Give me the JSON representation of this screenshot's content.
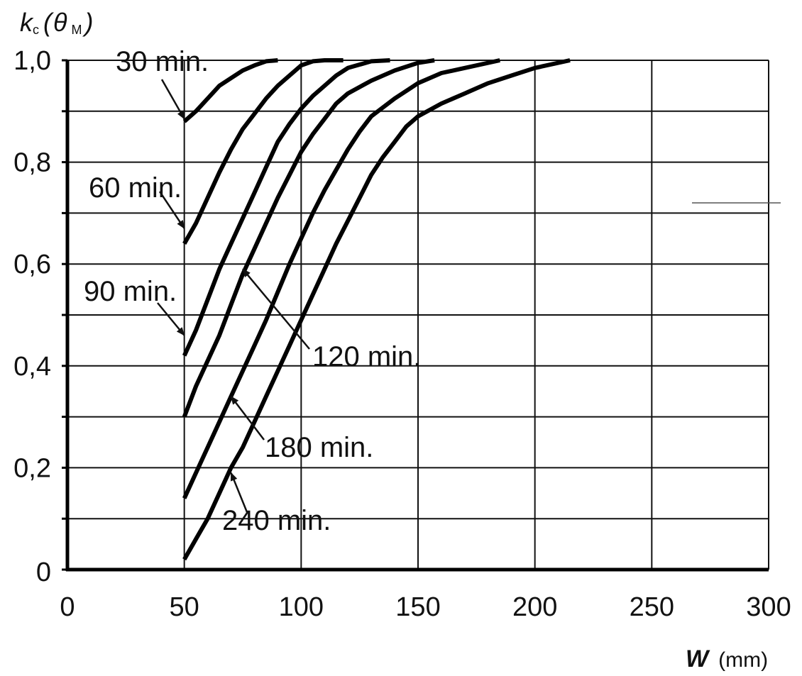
{
  "chart_data": {
    "type": "line",
    "ylabel": {
      "symbol": "k",
      "sub": "c",
      "paren_open": "(",
      "var": "θ",
      "var_sub": "M",
      "paren_close": ")"
    },
    "xlabel": {
      "symbol": "W",
      "unit": "(mm)"
    },
    "xlim": [
      0,
      300
    ],
    "ylim": [
      0,
      1.0
    ],
    "x_ticks": [
      0,
      50,
      100,
      150,
      200,
      250,
      300
    ],
    "x_tick_labels": [
      "0",
      "50",
      "100",
      "150",
      "200",
      "250",
      "300"
    ],
    "y_ticks": [
      0,
      0.2,
      0.4,
      0.6,
      0.8,
      1.0
    ],
    "y_tick_labels": [
      "0",
      "0,2",
      "0,4",
      "0,6",
      "0,8",
      "1,0"
    ],
    "grid": true,
    "series": [
      {
        "name": "30 min.",
        "points": [
          [
            50,
            0.88
          ],
          [
            55,
            0.9
          ],
          [
            60,
            0.925
          ],
          [
            65,
            0.95
          ],
          [
            70,
            0.965
          ],
          [
            75,
            0.98
          ],
          [
            80,
            0.99
          ],
          [
            85,
            0.998
          ],
          [
            90,
            1.0
          ]
        ]
      },
      {
        "name": "60 min.",
        "points": [
          [
            50,
            0.64
          ],
          [
            55,
            0.68
          ],
          [
            60,
            0.73
          ],
          [
            65,
            0.78
          ],
          [
            70,
            0.825
          ],
          [
            75,
            0.865
          ],
          [
            80,
            0.895
          ],
          [
            85,
            0.925
          ],
          [
            90,
            0.95
          ],
          [
            95,
            0.97
          ],
          [
            100,
            0.99
          ],
          [
            105,
            0.998
          ],
          [
            110,
            1.0
          ],
          [
            118,
            1.0
          ]
        ]
      },
      {
        "name": "90 min.",
        "points": [
          [
            50,
            0.42
          ],
          [
            55,
            0.47
          ],
          [
            60,
            0.53
          ],
          [
            65,
            0.59
          ],
          [
            70,
            0.64
          ],
          [
            75,
            0.69
          ],
          [
            80,
            0.74
          ],
          [
            85,
            0.79
          ],
          [
            90,
            0.84
          ],
          [
            95,
            0.875
          ],
          [
            100,
            0.905
          ],
          [
            105,
            0.93
          ],
          [
            110,
            0.95
          ],
          [
            115,
            0.97
          ],
          [
            120,
            0.985
          ],
          [
            130,
            0.998
          ],
          [
            138,
            1.0
          ]
        ]
      },
      {
        "name": "120 min.",
        "points": [
          [
            50,
            0.3
          ],
          [
            55,
            0.36
          ],
          [
            60,
            0.41
          ],
          [
            65,
            0.46
          ],
          [
            70,
            0.52
          ],
          [
            75,
            0.58
          ],
          [
            80,
            0.63
          ],
          [
            85,
            0.68
          ],
          [
            90,
            0.73
          ],
          [
            95,
            0.775
          ],
          [
            100,
            0.82
          ],
          [
            105,
            0.855
          ],
          [
            110,
            0.885
          ],
          [
            115,
            0.915
          ],
          [
            120,
            0.935
          ],
          [
            130,
            0.96
          ],
          [
            140,
            0.98
          ],
          [
            150,
            0.995
          ],
          [
            157,
            1.0
          ]
        ]
      },
      {
        "name": "180 min.",
        "points": [
          [
            50,
            0.14
          ],
          [
            55,
            0.19
          ],
          [
            60,
            0.24
          ],
          [
            65,
            0.29
          ],
          [
            70,
            0.34
          ],
          [
            75,
            0.39
          ],
          [
            80,
            0.44
          ],
          [
            85,
            0.49
          ],
          [
            90,
            0.545
          ],
          [
            95,
            0.6
          ],
          [
            100,
            0.65
          ],
          [
            105,
            0.7
          ],
          [
            110,
            0.745
          ],
          [
            115,
            0.785
          ],
          [
            120,
            0.825
          ],
          [
            125,
            0.86
          ],
          [
            130,
            0.89
          ],
          [
            140,
            0.925
          ],
          [
            150,
            0.955
          ],
          [
            160,
            0.975
          ],
          [
            170,
            0.985
          ],
          [
            185,
            1.0
          ]
        ]
      },
      {
        "name": "240 min.",
        "points": [
          [
            50,
            0.02
          ],
          [
            55,
            0.06
          ],
          [
            60,
            0.1
          ],
          [
            65,
            0.15
          ],
          [
            70,
            0.2
          ],
          [
            75,
            0.24
          ],
          [
            80,
            0.29
          ],
          [
            85,
            0.34
          ],
          [
            90,
            0.39
          ],
          [
            95,
            0.44
          ],
          [
            100,
            0.49
          ],
          [
            105,
            0.54
          ],
          [
            110,
            0.59
          ],
          [
            115,
            0.64
          ],
          [
            120,
            0.685
          ],
          [
            125,
            0.73
          ],
          [
            130,
            0.775
          ],
          [
            135,
            0.81
          ],
          [
            140,
            0.84
          ],
          [
            145,
            0.87
          ],
          [
            150,
            0.89
          ],
          [
            160,
            0.915
          ],
          [
            170,
            0.935
          ],
          [
            180,
            0.955
          ],
          [
            190,
            0.97
          ],
          [
            200,
            0.985
          ],
          [
            215,
            1.0
          ]
        ]
      }
    ],
    "annotations": [
      {
        "label": "30 min.",
        "target": [
          50,
          0.885
        ]
      },
      {
        "label": "60 min.",
        "target": [
          50,
          0.67
        ]
      },
      {
        "label": "90 min.",
        "target": [
          50,
          0.46
        ]
      },
      {
        "label": "120 min.",
        "target": [
          75,
          0.59
        ]
      },
      {
        "label": "180 min.",
        "target": [
          70,
          0.34
        ]
      },
      {
        "label": "240 min.",
        "target": [
          70,
          0.19
        ]
      }
    ]
  }
}
